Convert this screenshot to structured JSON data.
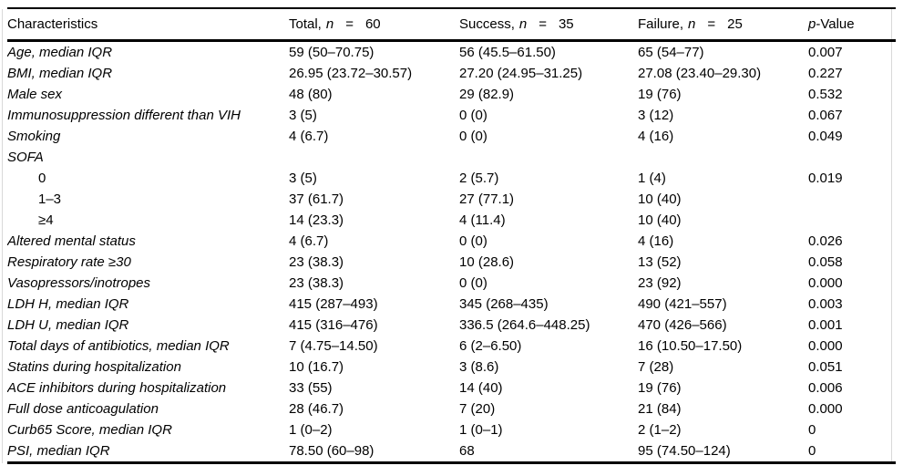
{
  "colors": {
    "text": "#000000",
    "background": "#ffffff",
    "rule": "#000000",
    "scan_edge": "#d9d9d9"
  },
  "table": {
    "header": {
      "characteristics": "Characteristics",
      "total": {
        "prefix": "Total,",
        "n": "n",
        "eq": "=",
        "count": "60"
      },
      "success": {
        "prefix": "Success,",
        "n": "n",
        "eq": "=",
        "count": "35"
      },
      "failure": {
        "prefix": "Failure,",
        "n": "n",
        "eq": "=",
        "count": "25"
      },
      "pvalue": {
        "p": "p",
        "suffix": "-Value"
      }
    },
    "rows": [
      {
        "label": "Age, median IQR",
        "italic": true,
        "indent": false,
        "total": "59 (50–70.75)",
        "success": "56 (45.5–61.50)",
        "failure": "65 (54–77)",
        "p": "0.007"
      },
      {
        "label": "BMI, median IQR",
        "italic": true,
        "indent": false,
        "total": "26.95 (23.72–30.57)",
        "success": "27.20 (24.95–31.25)",
        "failure": "27.08 (23.40–29.30)",
        "p": "0.227"
      },
      {
        "label": "Male sex",
        "italic": true,
        "indent": false,
        "total": "48 (80)",
        "success": "29 (82.9)",
        "failure": "19 (76)",
        "p": "0.532"
      },
      {
        "label": "Immunosuppression different than VIH",
        "italic": true,
        "indent": false,
        "total": "3 (5)",
        "success": "0 (0)",
        "failure": "3 (12)",
        "p": "0.067"
      },
      {
        "label": "Smoking",
        "italic": true,
        "indent": false,
        "total": "4 (6.7)",
        "success": "0 (0)",
        "failure": "4 (16)",
        "p": "0.049"
      },
      {
        "label": "SOFA",
        "italic": true,
        "indent": false,
        "total": "",
        "success": "",
        "failure": "",
        "p": ""
      },
      {
        "label": "0",
        "italic": false,
        "indent": true,
        "total": "3 (5)",
        "success": "2 (5.7)",
        "failure": "1 (4)",
        "p": "0.019"
      },
      {
        "label": "1–3",
        "italic": false,
        "indent": true,
        "total": "37 (61.7)",
        "success": "27 (77.1)",
        "failure": "10 (40)",
        "p": ""
      },
      {
        "label": "≥4",
        "italic": false,
        "indent": true,
        "total": "14 (23.3)",
        "success": "4 (11.4)",
        "failure": "10 (40)",
        "p": ""
      },
      {
        "label": "Altered mental status",
        "italic": true,
        "indent": false,
        "total": "4 (6.7)",
        "success": "0 (0)",
        "failure": "4 (16)",
        "p": "0.026"
      },
      {
        "label": "Respiratory rate ≥30",
        "italic": true,
        "indent": false,
        "total": "23 (38.3)",
        "success": "10 (28.6)",
        "failure": "13 (52)",
        "p": "0.058"
      },
      {
        "label": "Vasopressors/inotropes",
        "italic": true,
        "indent": false,
        "total": "23 (38.3)",
        "success": "0 (0)",
        "failure": "23 (92)",
        "p": "0.000"
      },
      {
        "label": "LDH H, median IQR",
        "italic": true,
        "indent": false,
        "total": "415 (287–493)",
        "success": "345 (268–435)",
        "failure": "490 (421–557)",
        "p": "0.003"
      },
      {
        "label": "LDH U, median IQR",
        "italic": true,
        "indent": false,
        "total": "415 (316–476)",
        "success": "336.5 (264.6–448.25)",
        "failure": "470 (426–566)",
        "p": "0.001"
      },
      {
        "label": "Total days of antibiotics, median IQR",
        "italic": true,
        "indent": false,
        "total": "7 (4.75–14.50)",
        "success": "6 (2–6.50)",
        "failure": "16 (10.50–17.50)",
        "p": "0.000"
      },
      {
        "label": "Statins during hospitalization",
        "italic": true,
        "indent": false,
        "total": "10 (16.7)",
        "success": "3 (8.6)",
        "failure": "7 (28)",
        "p": "0.051"
      },
      {
        "label": "ACE inhibitors during hospitalization",
        "italic": true,
        "indent": false,
        "total": "33 (55)",
        "success": "14 (40)",
        "failure": "19 (76)",
        "p": "0.006"
      },
      {
        "label": "Full dose anticoagulation",
        "italic": true,
        "indent": false,
        "total": "28 (46.7)",
        "success": "7 (20)",
        "failure": "21 (84)",
        "p": "0.000"
      },
      {
        "label": "Curb65 Score, median IQR",
        "italic": true,
        "indent": false,
        "total": "1 (0–2)",
        "success": "1 (0–1)",
        "failure": "2 (1–2)",
        "p": "0"
      },
      {
        "label": "PSI, median IQR",
        "italic": true,
        "indent": false,
        "total": "78.50 (60–98)",
        "success": "68",
        "failure": "95 (74.50–124)",
        "p": "0"
      }
    ]
  }
}
